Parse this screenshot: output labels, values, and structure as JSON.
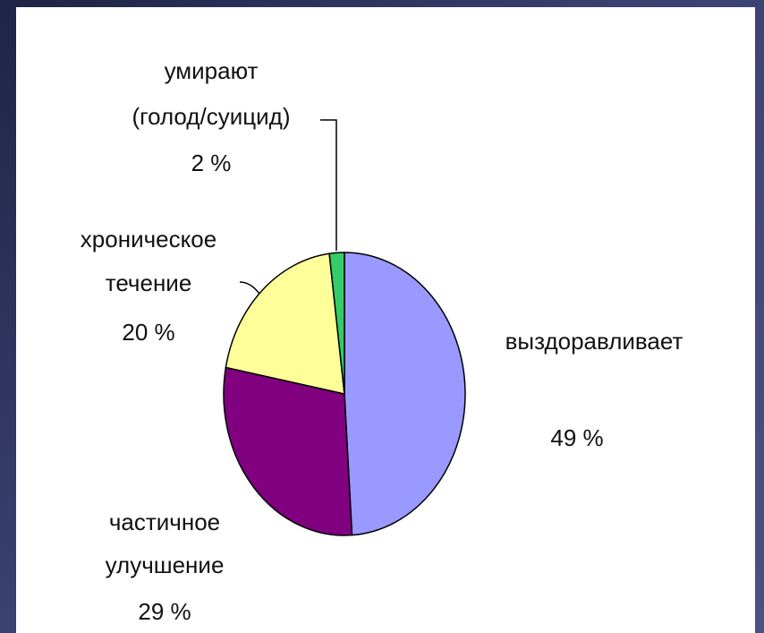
{
  "chart_data": {
    "type": "pie",
    "slices": [
      {
        "label": [
          "выздоравливает"
        ],
        "value_label": "49 %",
        "value": 49,
        "color": "#9999ff"
      },
      {
        "label": [
          "частичное",
          "улучшение"
        ],
        "value_label": "29 %",
        "value": 29,
        "color": "#800080"
      },
      {
        "label": [
          "хроническое",
          "течение"
        ],
        "value_label": "20 %",
        "value": 20,
        "color": "#ffff99"
      },
      {
        "label": [
          "умирают",
          "(голод/суицид)"
        ],
        "value_label": "2 %",
        "value": 2,
        "color": "#33cc66"
      }
    ],
    "start": "12 o'clock",
    "direction": "clockwise",
    "legend": "none"
  }
}
